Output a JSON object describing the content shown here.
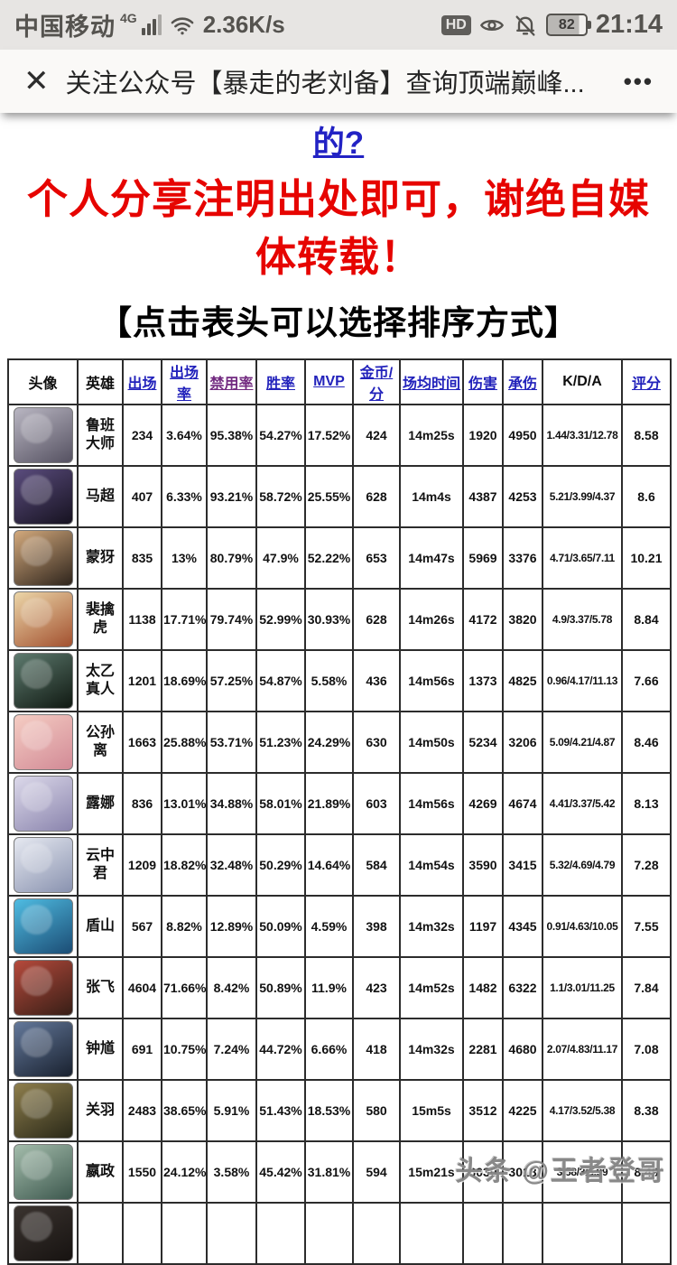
{
  "status_bar": {
    "carrier": "中国移动",
    "network": "4G",
    "speed": "2.36K/s",
    "hd_badge": "HD",
    "battery_level": "82",
    "time": "21:14"
  },
  "title_bar": {
    "close_glyph": "✕",
    "title": "关注公众号【暴走的老刘备】查询顶端巅峰...",
    "menu_glyph": "•••"
  },
  "article": {
    "link_text": "的?",
    "notice_text": "个人分享注明出处即可，谢绝自媒体转载！",
    "table_hint": "【点击表头可以选择排序方式】"
  },
  "watermark": "头条 @王者登哥",
  "colors": {
    "link_blue": "#2222bb",
    "visited_purple": "#722a80",
    "notice_red": "#e60400",
    "status_bar_bg": "#e7e5e3"
  },
  "table": {
    "headers": [
      {
        "key": "avatar",
        "label": "头像",
        "style": "plain"
      },
      {
        "key": "hero",
        "label": "英雄",
        "style": "plain"
      },
      {
        "key": "games",
        "label": "出场",
        "style": "link"
      },
      {
        "key": "pick-rate",
        "label": "出场率",
        "style": "link"
      },
      {
        "key": "ban-rate",
        "label": "禁用率",
        "style": "visited"
      },
      {
        "key": "win-rate",
        "label": "胜率",
        "style": "link"
      },
      {
        "key": "mvp",
        "label": "MVP",
        "style": "link"
      },
      {
        "key": "gold-per-min",
        "label": "金币/分",
        "style": "link"
      },
      {
        "key": "avg-time",
        "label": "场均时间",
        "style": "link"
      },
      {
        "key": "damage",
        "label": "伤害",
        "style": "link"
      },
      {
        "key": "damage-taken",
        "label": "承伤",
        "style": "link"
      },
      {
        "key": "kda",
        "label": "K/D/A",
        "style": "plain"
      },
      {
        "key": "score",
        "label": "评分",
        "style": "link"
      }
    ],
    "rows": [
      {
        "hero": "鲁班大师",
        "avatar_colors": [
          "#b9b6c2",
          "#55516100"
        ],
        "avatar_dark": "#555161",
        "values": [
          "234",
          "3.64%",
          "95.38%",
          "54.27%",
          "17.52%",
          "424",
          "14m25s",
          "1920",
          "4950",
          "1.44/3.31/12.78",
          "8.58"
        ]
      },
      {
        "hero": "马超",
        "avatar_colors": [
          "#5a4c7d",
          ""
        ],
        "avatar_dark": "#161220",
        "values": [
          "407",
          "6.33%",
          "93.21%",
          "58.72%",
          "25.55%",
          "628",
          "14m4s",
          "4387",
          "4253",
          "5.21/3.99/4.37",
          "8.6"
        ]
      },
      {
        "hero": "蒙犽",
        "avatar_colors": [
          "#d3a97c",
          ""
        ],
        "avatar_dark": "#2e241c",
        "values": [
          "835",
          "13%",
          "80.79%",
          "47.9%",
          "52.22%",
          "653",
          "14m47s",
          "5969",
          "3376",
          "4.71/3.65/7.11",
          "10.21"
        ]
      },
      {
        "hero": "裴擒虎",
        "avatar_colors": [
          "#ecd6a8",
          ""
        ],
        "avatar_dark": "#a2502f",
        "values": [
          "1138",
          "17.71%",
          "79.74%",
          "52.99%",
          "30.93%",
          "628",
          "14m26s",
          "4172",
          "3820",
          "4.9/3.37/5.78",
          "8.84"
        ]
      },
      {
        "hero": "太乙真人",
        "avatar_colors": [
          "#5d7a6e",
          ""
        ],
        "avatar_dark": "#101912",
        "values": [
          "1201",
          "18.69%",
          "57.25%",
          "54.87%",
          "5.58%",
          "436",
          "14m56s",
          "1373",
          "4825",
          "0.96/4.17/11.13",
          "7.66"
        ]
      },
      {
        "hero": "公孙离",
        "avatar_colors": [
          "#f5cdc3",
          ""
        ],
        "avatar_dark": "#d28a96",
        "values": [
          "1663",
          "25.88%",
          "53.71%",
          "51.23%",
          "24.29%",
          "630",
          "14m50s",
          "5234",
          "3206",
          "5.09/4.21/4.87",
          "8.46"
        ]
      },
      {
        "hero": "露娜",
        "avatar_colors": [
          "#dcd9ea",
          ""
        ],
        "avatar_dark": "#8a84ad",
        "values": [
          "836",
          "13.01%",
          "34.88%",
          "58.01%",
          "21.89%",
          "603",
          "14m56s",
          "4269",
          "4674",
          "4.41/3.37/5.42",
          "8.13"
        ]
      },
      {
        "hero": "云中君",
        "avatar_colors": [
          "#e6e9f1",
          ""
        ],
        "avatar_dark": "#8992af",
        "values": [
          "1209",
          "18.82%",
          "32.48%",
          "50.29%",
          "14.64%",
          "584",
          "14m54s",
          "3590",
          "3415",
          "5.32/4.69/4.79",
          "7.28"
        ]
      },
      {
        "hero": "盾山",
        "avatar_colors": [
          "#4fbce2",
          ""
        ],
        "avatar_dark": "#1b4c74",
        "values": [
          "567",
          "8.82%",
          "12.89%",
          "50.09%",
          "4.59%",
          "398",
          "14m32s",
          "1197",
          "4345",
          "0.91/4.63/10.05",
          "7.55"
        ]
      },
      {
        "hero": "张飞",
        "avatar_colors": [
          "#b64a3c",
          ""
        ],
        "avatar_dark": "#371e16",
        "values": [
          "4604",
          "71.66%",
          "8.42%",
          "50.89%",
          "11.9%",
          "423",
          "14m52s",
          "1482",
          "6322",
          "1.1/3.01/11.25",
          "7.84"
        ]
      },
      {
        "hero": "钟馗",
        "avatar_colors": [
          "#63789a",
          ""
        ],
        "avatar_dark": "#19212f",
        "values": [
          "691",
          "10.75%",
          "7.24%",
          "44.72%",
          "6.66%",
          "418",
          "14m32s",
          "2281",
          "4680",
          "2.07/4.83/11.17",
          "7.08"
        ]
      },
      {
        "hero": "关羽",
        "avatar_colors": [
          "#8e7e4c",
          ""
        ],
        "avatar_dark": "#292818",
        "values": [
          "2483",
          "38.65%",
          "5.91%",
          "51.43%",
          "18.53%",
          "580",
          "15m5s",
          "3512",
          "4225",
          "4.17/3.52/5.38",
          "8.38"
        ]
      },
      {
        "hero": "嬴政",
        "avatar_colors": [
          "#a3bcab",
          ""
        ],
        "avatar_dark": "#3d584e",
        "values": [
          "1550",
          "24.12%",
          "3.58%",
          "45.42%",
          "31.81%",
          "594",
          "15m21s",
          "6030",
          "3018",
          "3.58/3/6.99",
          "8.49"
        ]
      },
      {
        "hero": "",
        "avatar_colors": [
          "#3a332f",
          ""
        ],
        "avatar_dark": "#171311",
        "values": [
          "",
          "",
          "",
          "",
          "",
          "",
          "",
          "",
          "",
          "",
          ""
        ]
      }
    ]
  }
}
